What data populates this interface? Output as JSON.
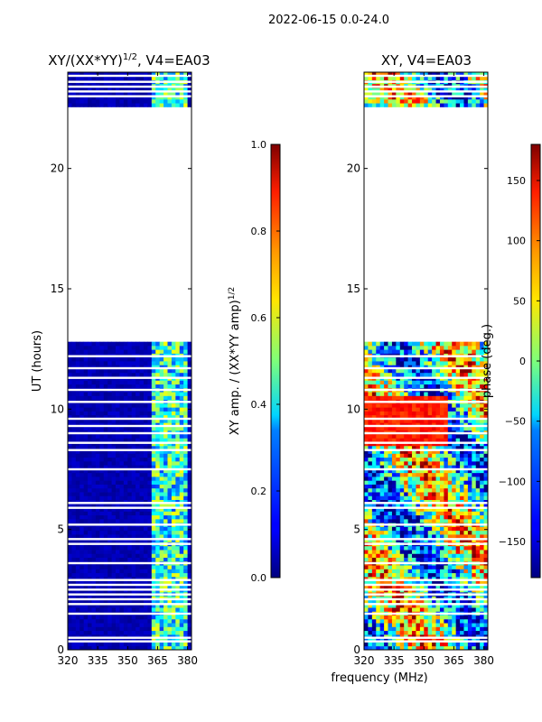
{
  "suptitle": "2022-06-15 0.0-24.0",
  "chart_data": [
    {
      "type": "heatmap",
      "title_prefix": "XY/(XX*YY)",
      "title_exp": "1/2",
      "title_suffix": ", V4=EA03",
      "xlabel": "",
      "ylabel": "UT (hours)",
      "xlim": [
        320,
        382
      ],
      "ylim": [
        0,
        24
      ],
      "xticks": [
        320,
        335,
        350,
        365,
        380
      ],
      "yticks": [
        0,
        5,
        10,
        15,
        20
      ],
      "data_gap_hours": [
        12.75,
        22.6
      ],
      "colorbar": {
        "label_main": "XY amp. / (XX*YY amp)",
        "label_exp": "1/2",
        "range": [
          0.0,
          1.0
        ],
        "ticks": [
          "0.0",
          "0.2",
          "0.4",
          "0.6",
          "0.8",
          "1.0"
        ],
        "colormap": "jet"
      }
    },
    {
      "type": "heatmap",
      "title": "XY, V4=EA03",
      "xlabel": "frequency (MHz)",
      "ylabel": "",
      "xlim": [
        320,
        382
      ],
      "ylim": [
        0,
        24
      ],
      "xticks": [
        320,
        335,
        350,
        365,
        380
      ],
      "yticks": [
        0,
        5,
        10,
        15,
        20
      ],
      "data_gap_hours": [
        12.75,
        22.6
      ],
      "colorbar": {
        "label": "phase (deg.)",
        "range": [
          -180,
          180
        ],
        "ticks": [
          -150,
          -100,
          -50,
          0,
          50,
          100,
          150
        ],
        "colormap": "jet"
      }
    }
  ]
}
